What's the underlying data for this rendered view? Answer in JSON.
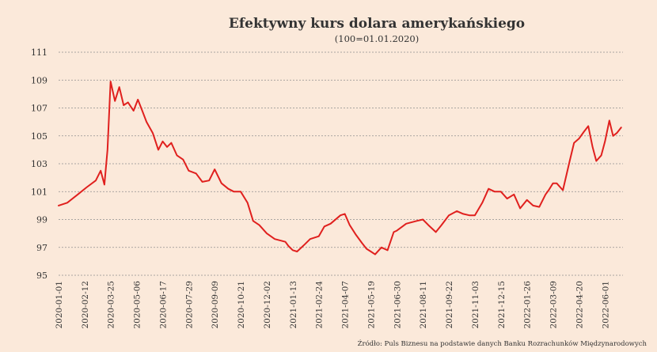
{
  "colors": {
    "background": "#fbe9da",
    "line": "#e0201e",
    "text": "#333333",
    "grid": "#8f8f8f"
  },
  "chart_data": {
    "type": "line",
    "title": "Efektywny kurs dolara amerykańskiego",
    "subtitle": "(100=01.01.2020)",
    "source": "Źródło: Puls Biznesu na podstawie danych Banku Rozrachunków Międzynarodowych",
    "xlabel": "",
    "ylabel": "",
    "ylim": [
      95,
      111
    ],
    "yticks": [
      95,
      97,
      99,
      101,
      103,
      105,
      107,
      109,
      111
    ],
    "xlim": [
      "2020-01-01",
      "2022-06-30"
    ],
    "xticks": [
      "2020-01-01",
      "2020-02-12",
      "2020-03-25",
      "2020-05-06",
      "2020-06-17",
      "2020-07-29",
      "2020-09-09",
      "2020-10-21",
      "2020-12-02",
      "2021-01-13",
      "2021-02-24",
      "2021-04-07",
      "2021-05-19",
      "2021-06-30",
      "2021-08-11",
      "2021-09-22",
      "2021-11-03",
      "2021-12-15",
      "2022-01-26",
      "2022-03-09",
      "2022-04-20",
      "2022-06-01"
    ],
    "grid": "horizontal-dashed",
    "series": [
      {
        "x": [
          "2020-01-01",
          "2020-01-15",
          "2020-02-01",
          "2020-02-15",
          "2020-03-01",
          "2020-03-09",
          "2020-03-15",
          "2020-03-20",
          "2020-03-25",
          "2020-04-01",
          "2020-04-08",
          "2020-04-15",
          "2020-04-22",
          "2020-05-01",
          "2020-05-08",
          "2020-05-15",
          "2020-05-22",
          "2020-06-01",
          "2020-06-10",
          "2020-06-17",
          "2020-06-24",
          "2020-07-01",
          "2020-07-10",
          "2020-07-20",
          "2020-07-29",
          "2020-08-10",
          "2020-08-20",
          "2020-08-31",
          "2020-09-09",
          "2020-09-20",
          "2020-10-01",
          "2020-10-10",
          "2020-10-21",
          "2020-11-01",
          "2020-11-10",
          "2020-11-20",
          "2020-12-02",
          "2020-12-15",
          "2021-01-01",
          "2021-01-06",
          "2021-01-13",
          "2021-01-20",
          "2021-02-01",
          "2021-02-10",
          "2021-02-24",
          "2021-03-05",
          "2021-03-15",
          "2021-03-31",
          "2021-04-07",
          "2021-04-15",
          "2021-04-25",
          "2021-05-05",
          "2021-05-12",
          "2021-05-19",
          "2021-05-26",
          "2021-06-05",
          "2021-06-15",
          "2021-06-25",
          "2021-06-30",
          "2021-07-15",
          "2021-08-01",
          "2021-08-11",
          "2021-08-20",
          "2021-09-01",
          "2021-09-10",
          "2021-09-22",
          "2021-10-05",
          "2021-10-15",
          "2021-10-25",
          "2021-11-03",
          "2021-11-15",
          "2021-11-25",
          "2021-12-05",
          "2021-12-15",
          "2021-12-25",
          "2022-01-05",
          "2022-01-15",
          "2022-01-26",
          "2022-02-05",
          "2022-02-15",
          "2022-02-25",
          "2022-03-02",
          "2022-03-09",
          "2022-03-15",
          "2022-03-25",
          "2022-04-05",
          "2022-04-12",
          "2022-04-20",
          "2022-04-28",
          "2022-05-05",
          "2022-05-12",
          "2022-05-18",
          "2022-05-26",
          "2022-06-01",
          "2022-06-08",
          "2022-06-14",
          "2022-06-20",
          "2022-06-27"
        ],
        "values": [
          100.0,
          100.2,
          100.8,
          101.3,
          101.8,
          102.5,
          101.5,
          104.0,
          108.9,
          107.5,
          108.5,
          107.2,
          107.4,
          106.8,
          107.6,
          106.8,
          106.0,
          105.2,
          104.0,
          104.6,
          104.2,
          104.5,
          103.6,
          103.3,
          102.5,
          102.3,
          101.7,
          101.8,
          102.6,
          101.6,
          101.2,
          101.0,
          101.0,
          100.2,
          98.9,
          98.6,
          98.0,
          97.6,
          97.4,
          97.1,
          96.8,
          96.7,
          97.2,
          97.6,
          97.8,
          98.5,
          98.7,
          99.3,
          99.4,
          98.6,
          97.9,
          97.3,
          96.9,
          96.7,
          96.5,
          97.0,
          96.8,
          98.1,
          98.2,
          98.7,
          98.9,
          99.0,
          98.6,
          98.1,
          98.6,
          99.3,
          99.6,
          99.4,
          99.3,
          99.3,
          100.2,
          101.2,
          101.0,
          101.0,
          100.5,
          100.8,
          99.8,
          100.4,
          100.0,
          99.9,
          100.8,
          101.1,
          101.6,
          101.6,
          101.1,
          103.2,
          104.5,
          104.8,
          105.3,
          105.7,
          104.2,
          103.2,
          103.6,
          104.6,
          106.1,
          105.0,
          105.2,
          105.6
        ]
      }
    ]
  }
}
